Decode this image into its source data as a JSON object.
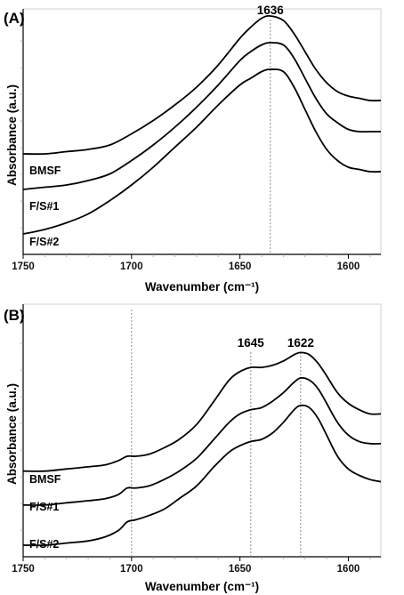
{
  "chart_data": [
    {
      "panel_label": "(A)",
      "type": "line",
      "xlabel": "Wavenumber (cm⁻¹)",
      "ylabel": "Absorbance (a.u.)",
      "xlim": [
        1750,
        1585
      ],
      "x_reversed": true,
      "x_ticks": [
        1750,
        1700,
        1650,
        1600
      ],
      "y_ticks_shown": false,
      "peak_markers": [
        {
          "x": 1636,
          "label": "1636"
        }
      ],
      "series": [
        {
          "name": "BMSF",
          "x": [
            1750,
            1740,
            1730,
            1720,
            1710,
            1700,
            1690,
            1680,
            1670,
            1660,
            1650,
            1645,
            1640,
            1636,
            1630,
            1625,
            1620,
            1615,
            1610,
            1605,
            1600,
            1595,
            1590,
            1585
          ],
          "y": [
            0.38,
            0.38,
            0.39,
            0.4,
            0.42,
            0.47,
            0.53,
            0.6,
            0.68,
            0.78,
            0.9,
            0.95,
            0.99,
            1.0,
            0.98,
            0.92,
            0.84,
            0.76,
            0.7,
            0.66,
            0.64,
            0.63,
            0.62,
            0.62
          ]
        },
        {
          "name": "F/S#1",
          "x": [
            1750,
            1740,
            1730,
            1720,
            1710,
            1700,
            1690,
            1680,
            1670,
            1660,
            1650,
            1645,
            1640,
            1636,
            1630,
            1625,
            1620,
            1615,
            1610,
            1605,
            1600,
            1595,
            1590,
            1585
          ],
          "y": [
            0.22,
            0.23,
            0.24,
            0.26,
            0.29,
            0.35,
            0.42,
            0.5,
            0.59,
            0.69,
            0.8,
            0.84,
            0.87,
            0.88,
            0.87,
            0.81,
            0.72,
            0.63,
            0.56,
            0.52,
            0.49,
            0.48,
            0.48,
            0.48
          ]
        },
        {
          "name": "F/S#2",
          "x": [
            1750,
            1740,
            1730,
            1720,
            1710,
            1700,
            1690,
            1680,
            1670,
            1660,
            1650,
            1645,
            1640,
            1636,
            1630,
            1625,
            1620,
            1615,
            1610,
            1605,
            1600,
            1595,
            1590,
            1585
          ],
          "y": [
            0.02,
            0.04,
            0.07,
            0.11,
            0.17,
            0.24,
            0.32,
            0.41,
            0.5,
            0.6,
            0.69,
            0.72,
            0.75,
            0.76,
            0.75,
            0.68,
            0.58,
            0.48,
            0.4,
            0.35,
            0.32,
            0.31,
            0.3,
            0.3
          ]
        }
      ]
    },
    {
      "panel_label": "(B)",
      "type": "line",
      "xlabel": "Wavenumber (cm⁻¹)",
      "ylabel": "Absorbance (a.u.)",
      "xlim": [
        1750,
        1585
      ],
      "x_reversed": true,
      "x_ticks": [
        1750,
        1700,
        1650,
        1600
      ],
      "y_ticks_shown": false,
      "peak_markers": [
        {
          "x": 1700,
          "label": ""
        },
        {
          "x": 1645,
          "label": "1645"
        },
        {
          "x": 1622,
          "label": "1622"
        }
      ],
      "series": [
        {
          "name": "BMSF",
          "x": [
            1750,
            1740,
            1730,
            1720,
            1712,
            1706,
            1702,
            1698,
            1692,
            1685,
            1678,
            1670,
            1662,
            1655,
            1650,
            1645,
            1640,
            1635,
            1630,
            1625,
            1622,
            1618,
            1614,
            1610,
            1605,
            1600,
            1595,
            1590,
            1585
          ],
          "y": [
            0.35,
            0.35,
            0.36,
            0.37,
            0.38,
            0.4,
            0.42,
            0.42,
            0.43,
            0.46,
            0.5,
            0.57,
            0.68,
            0.78,
            0.82,
            0.84,
            0.84,
            0.85,
            0.87,
            0.9,
            0.91,
            0.9,
            0.86,
            0.8,
            0.72,
            0.67,
            0.64,
            0.62,
            0.62
          ]
        },
        {
          "name": "F/S#1",
          "x": [
            1750,
            1740,
            1730,
            1720,
            1712,
            1706,
            1702,
            1698,
            1692,
            1685,
            1678,
            1670,
            1662,
            1655,
            1650,
            1645,
            1640,
            1635,
            1630,
            1625,
            1622,
            1618,
            1614,
            1610,
            1605,
            1600,
            1595,
            1590,
            1585
          ],
          "y": [
            0.19,
            0.19,
            0.2,
            0.21,
            0.22,
            0.24,
            0.27,
            0.27,
            0.28,
            0.31,
            0.35,
            0.41,
            0.5,
            0.58,
            0.62,
            0.64,
            0.65,
            0.68,
            0.72,
            0.77,
            0.79,
            0.78,
            0.74,
            0.67,
            0.58,
            0.52,
            0.49,
            0.48,
            0.48
          ]
        },
        {
          "name": "F/S#2",
          "x": [
            1750,
            1740,
            1730,
            1720,
            1712,
            1706,
            1702,
            1698,
            1692,
            1685,
            1678,
            1670,
            1662,
            1655,
            1650,
            1645,
            1640,
            1635,
            1630,
            1625,
            1622,
            1618,
            1614,
            1610,
            1605,
            1600,
            1595,
            1590,
            1585
          ],
          "y": [
            0.0,
            0.0,
            0.01,
            0.02,
            0.04,
            0.07,
            0.11,
            0.12,
            0.14,
            0.17,
            0.22,
            0.28,
            0.37,
            0.44,
            0.47,
            0.49,
            0.5,
            0.53,
            0.58,
            0.64,
            0.66,
            0.65,
            0.6,
            0.52,
            0.42,
            0.36,
            0.33,
            0.31,
            0.3
          ]
        }
      ]
    }
  ]
}
